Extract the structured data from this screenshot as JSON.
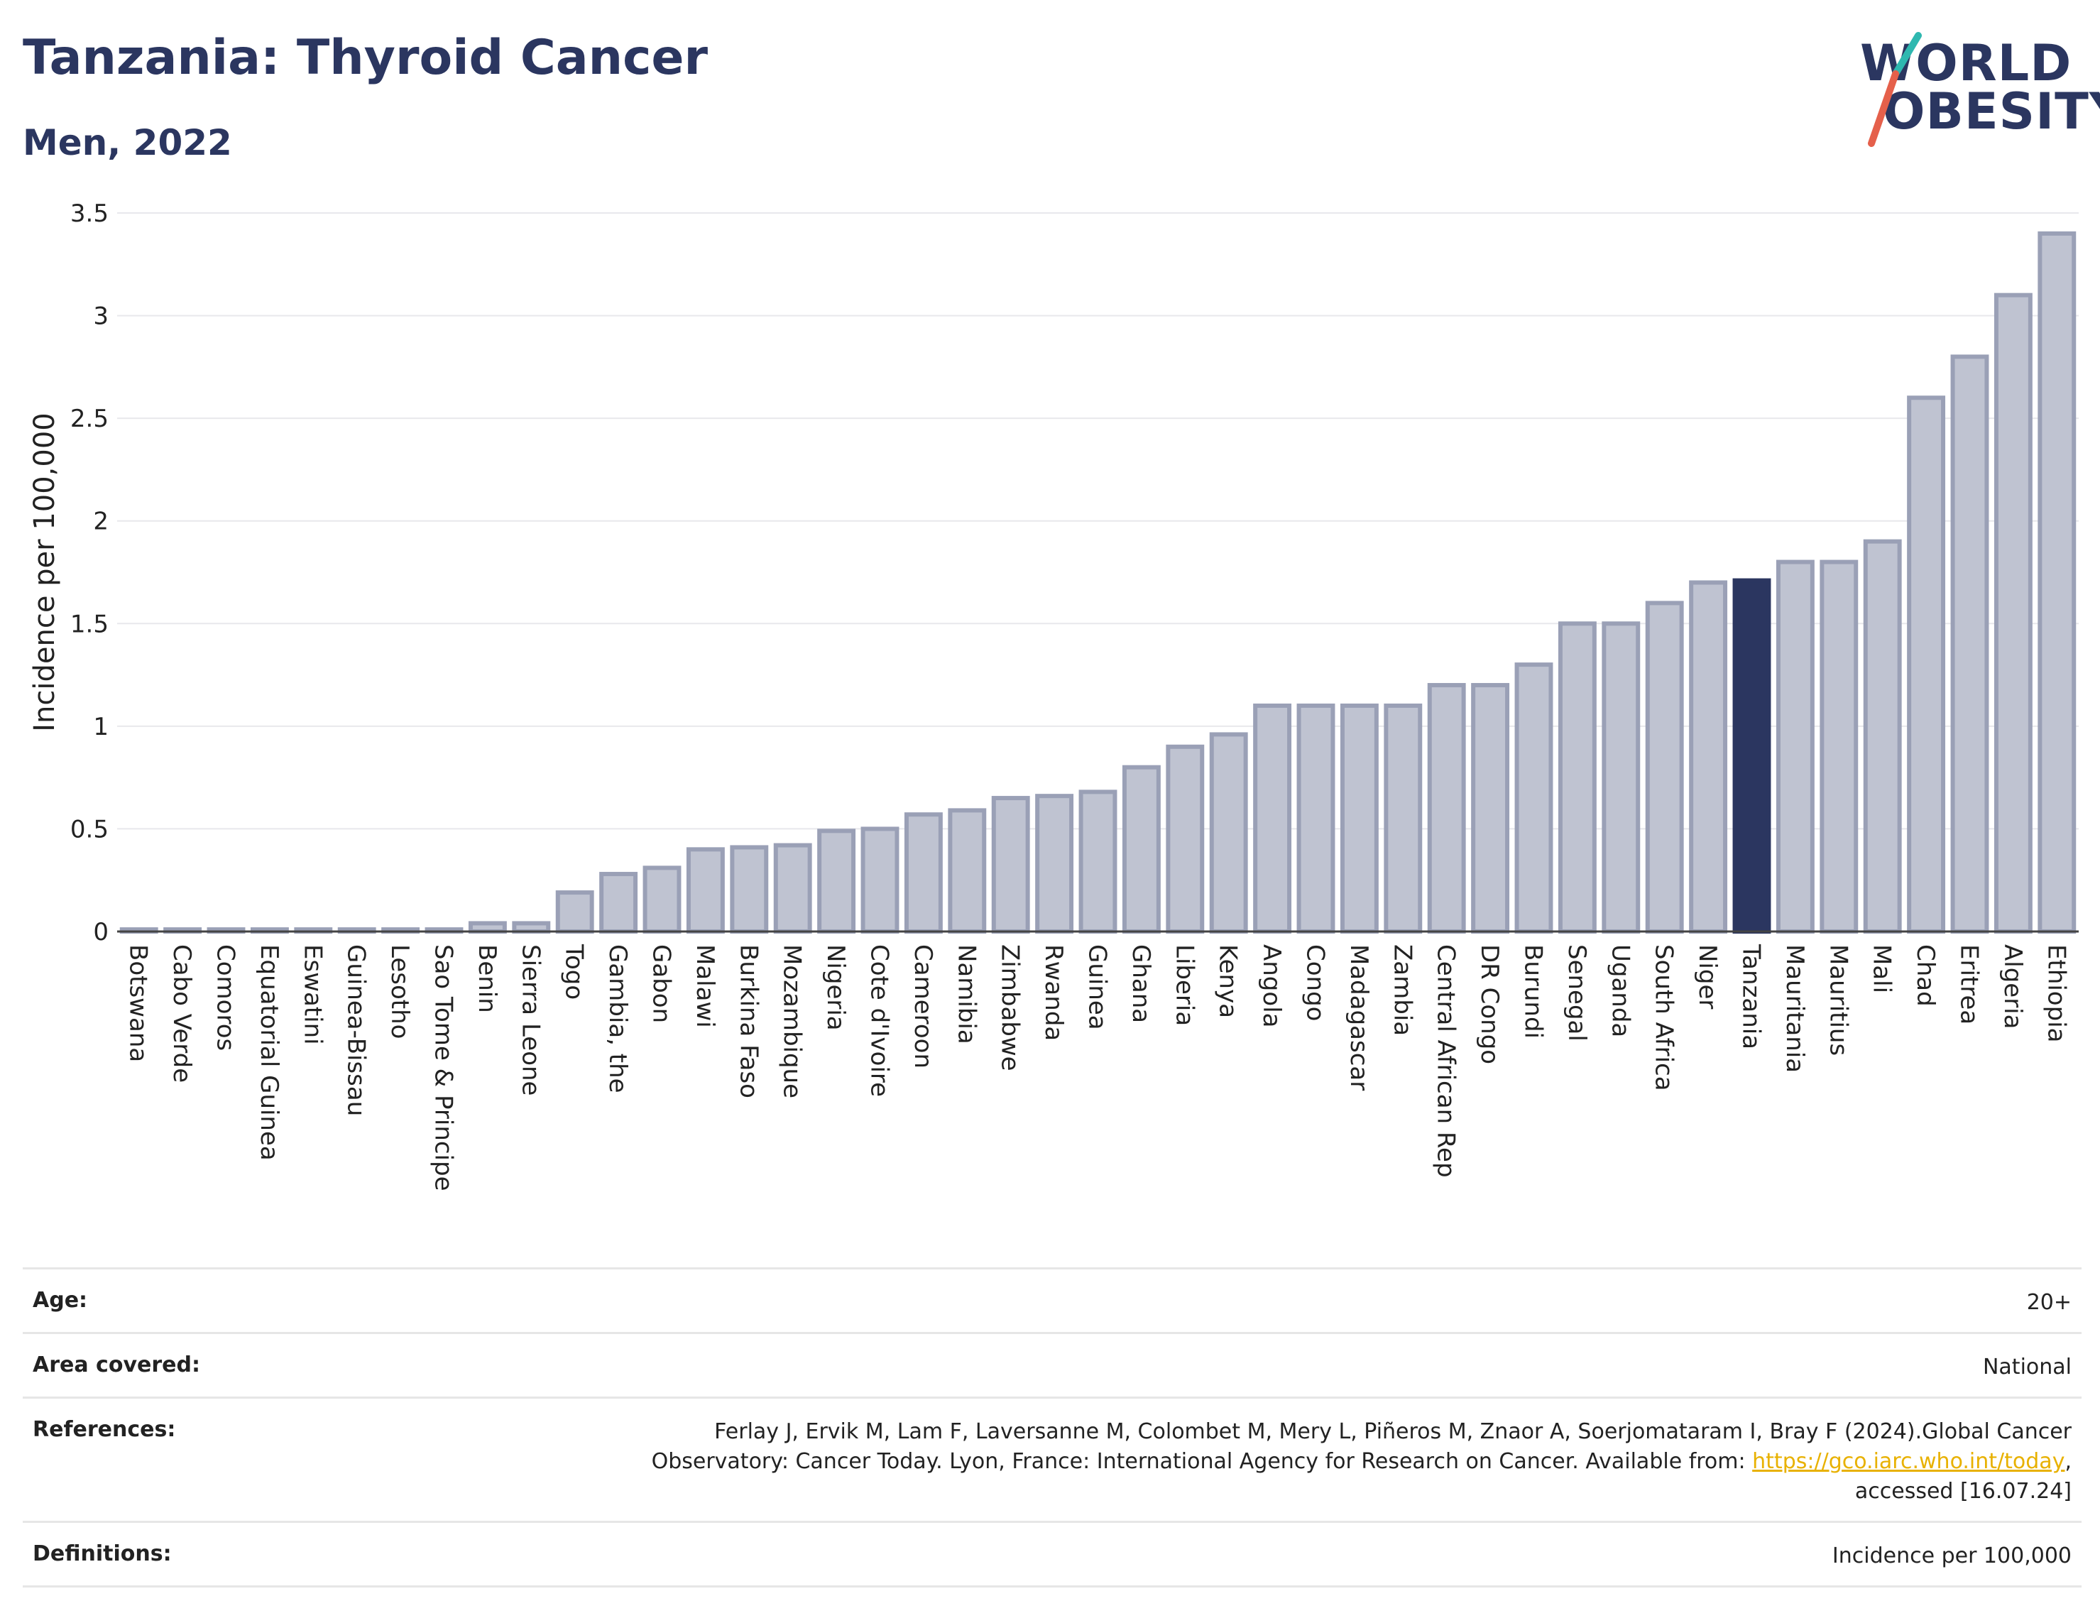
{
  "header": {
    "title": "Tanzania: Thyroid Cancer",
    "subtitle": "Men, 2022"
  },
  "logo": {
    "line1": "WORLD",
    "line2": "OBESITY"
  },
  "colors": {
    "bar": "#bfc3d1",
    "bar_stroke": "#9aa0b6",
    "highlight": "#2b3660",
    "accent_teal": "#2fb8b0",
    "accent_red": "#e5604b"
  },
  "chart_data": {
    "type": "bar",
    "title": "Tanzania: Thyroid Cancer",
    "subtitle": "Men, 2022",
    "ylabel": "Incidence per 100,000",
    "xlabel": "",
    "ylim": [
      0,
      3.5
    ],
    "yticks": [
      0,
      0.5,
      1,
      1.5,
      2,
      2.5,
      3,
      3.5
    ],
    "ytick_labels": [
      "0",
      "0.5",
      "1",
      "1.5",
      "2",
      "2.5",
      "3",
      "3.5"
    ],
    "grid": true,
    "highlight": "Tanzania",
    "categories": [
      "Botswana",
      "Cabo Verde",
      "Comoros",
      "Equatorial Guinea",
      "Eswatini",
      "Guinea-Bissau",
      "Lesotho",
      "Sao Tome & Principe",
      "Benin",
      "Sierra Leone",
      "Togo",
      "Gambia, the",
      "Gabon",
      "Malawi",
      "Burkina Faso",
      "Mozambique",
      "Nigeria",
      "Cote d'Ivoire",
      "Cameroon",
      "Namibia",
      "Zimbabwe",
      "Rwanda",
      "Guinea",
      "Ghana",
      "Liberia",
      "Kenya",
      "Angola",
      "Congo",
      "Madagascar",
      "Zambia",
      "Central African Rep",
      "DR Congo",
      "Burundi",
      "Senegal",
      "Uganda",
      "South Africa",
      "Niger",
      "Tanzania",
      "Mauritania",
      "Mauritius",
      "Mali",
      "Chad",
      "Eritrea",
      "Algeria",
      "Ethiopia"
    ],
    "values": [
      0.01,
      0.01,
      0.01,
      0.01,
      0.01,
      0.01,
      0.01,
      0.01,
      0.04,
      0.04,
      0.19,
      0.28,
      0.31,
      0.4,
      0.41,
      0.42,
      0.49,
      0.5,
      0.57,
      0.59,
      0.65,
      0.66,
      0.68,
      0.8,
      0.9,
      0.96,
      1.1,
      1.1,
      1.1,
      1.1,
      1.2,
      1.2,
      1.3,
      1.5,
      1.5,
      1.6,
      1.7,
      1.71,
      1.8,
      1.8,
      1.9,
      2.6,
      2.8,
      3.1,
      3.4
    ]
  },
  "footer": {
    "rows": [
      {
        "key": "Age:",
        "value": "20+"
      },
      {
        "key": "Area covered:",
        "value": "National"
      },
      {
        "key": "References:",
        "value_lines": [
          "Ferlay J, Ervik M, Lam F, Laversanne M, Colombet M, Mery L, Piñeros M, Znaor A, Soerjomataram I, Bray F (2024).Global Cancer",
          "Observatory: Cancer Today. Lyon, France: International Agency for Research on Cancer. Available from: "
        ],
        "link": "https://gco.iarc.who.int/today",
        "after_link": ",",
        "last_line": "accessed [16.07.24]"
      },
      {
        "key": "Definitions:",
        "value": "Incidence per 100,000"
      }
    ]
  }
}
